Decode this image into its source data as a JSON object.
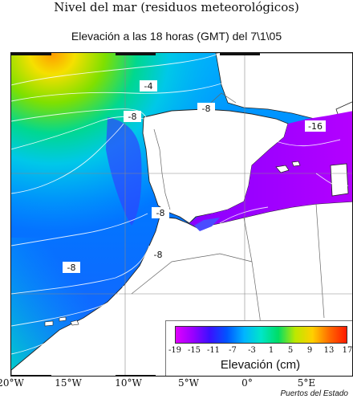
{
  "header": {
    "title": "Nivel del mar (residuos meteorológicos)",
    "subtitle": "Elevación a las 18 horas (GMT) del 7\\1\\05"
  },
  "map": {
    "contour_labels": [
      "-4",
      "-8",
      "-8",
      "-16",
      "-8",
      "-8",
      "-8"
    ],
    "longitude_labels": [
      "20°W",
      "15°W",
      "10°W",
      "5°W",
      "0°",
      "5°E"
    ]
  },
  "legend": {
    "title": "Elevación (cm)",
    "ticks": [
      "-19",
      "-15",
      "-11",
      "-7",
      "-3",
      "1",
      "5",
      "9",
      "13",
      "17"
    ],
    "colors": [
      "#e000ff",
      "#9a00ff",
      "#3a10ff",
      "#0055ff",
      "#00b4ff",
      "#00e6c8",
      "#00dd66",
      "#bde800",
      "#ffd000",
      "#ff6a00",
      "#ff1a00"
    ]
  },
  "footer": {
    "credit": "Puertos del Estado"
  }
}
